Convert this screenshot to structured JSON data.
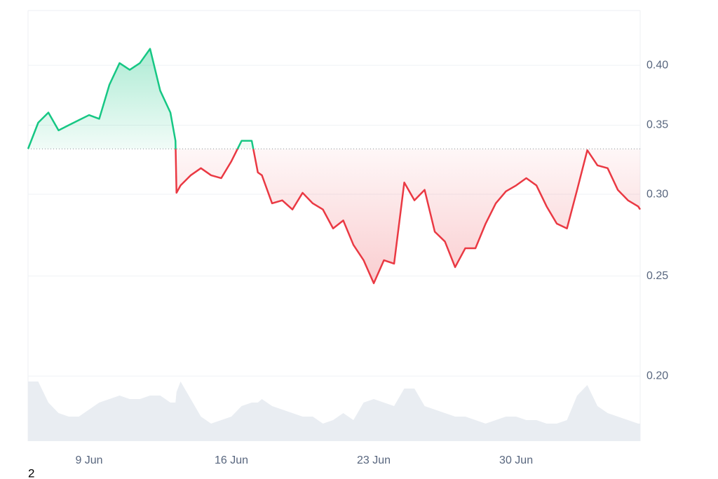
{
  "chart_data": {
    "type": "line",
    "x": [
      6.0,
      6.5,
      7.0,
      7.5,
      8.0,
      8.5,
      9.0,
      9.5,
      10.0,
      10.5,
      11.0,
      11.5,
      12.0,
      12.5,
      13.0,
      13.25,
      13.3,
      13.5,
      14.0,
      14.5,
      15.0,
      15.5,
      16.0,
      16.5,
      17.0,
      17.3,
      17.5,
      18.0,
      18.5,
      19.0,
      19.5,
      20.0,
      20.5,
      21.0,
      21.5,
      22.0,
      22.5,
      23.0,
      23.5,
      24.0,
      24.5,
      25.0,
      25.5,
      26.0,
      26.5,
      27.0,
      27.5,
      28.0,
      28.5,
      29.0,
      29.5,
      30.0,
      30.5,
      31.0,
      31.5,
      32.0,
      32.5,
      33.0,
      33.5,
      34.0,
      34.5,
      35.0,
      35.5,
      36.0,
      36.1
    ],
    "values": [
      0.332,
      0.352,
      0.36,
      0.346,
      0.35,
      0.354,
      0.358,
      0.355,
      0.383,
      0.402,
      0.396,
      0.402,
      0.415,
      0.378,
      0.36,
      0.338,
      0.301,
      0.306,
      0.313,
      0.318,
      0.313,
      0.311,
      0.323,
      0.338,
      0.338,
      0.315,
      0.313,
      0.294,
      0.296,
      0.29,
      0.301,
      0.294,
      0.29,
      0.278,
      0.283,
      0.268,
      0.259,
      0.246,
      0.259,
      0.257,
      0.308,
      0.296,
      0.303,
      0.276,
      0.27,
      0.255,
      0.266,
      0.266,
      0.281,
      0.294,
      0.302,
      0.306,
      0.311,
      0.306,
      0.292,
      0.281,
      0.278,
      0.303,
      0.331,
      0.32,
      0.318,
      0.303,
      0.296,
      0.292,
      0.29
    ],
    "baseline": 0.332,
    "up_color": "#16c784",
    "down_color": "#ea3943",
    "ylog": true,
    "ylim": [
      0.173,
      0.452
    ],
    "yticks": [
      {
        "value": 0.2,
        "label": "0.20"
      },
      0.25,
      {
        "value": 0.3,
        "label": "0.30"
      },
      0.35,
      {
        "value": 0.4,
        "label": "0.40"
      }
    ],
    "xlim": [
      6.0,
      36.1
    ],
    "xticks": [
      {
        "value": 9,
        "label": "9 Jun"
      },
      {
        "value": 16,
        "label": "16 Jun"
      },
      {
        "value": 23,
        "label": "23 Jun"
      },
      {
        "value": 30,
        "label": "30 Jun"
      }
    ],
    "grid": true,
    "volume": {
      "color": "#e9edf2",
      "lim": [
        0,
        90
      ],
      "values": [
        85,
        85,
        55,
        40,
        35,
        35,
        45,
        55,
        60,
        65,
        60,
        60,
        65,
        65,
        55,
        55,
        70,
        85,
        60,
        35,
        25,
        30,
        35,
        50,
        55,
        55,
        60,
        50,
        45,
        40,
        35,
        35,
        25,
        30,
        40,
        30,
        55,
        60,
        55,
        50,
        75,
        75,
        50,
        45,
        40,
        35,
        35,
        30,
        25,
        30,
        35,
        35,
        30,
        30,
        25,
        25,
        30,
        65,
        80,
        50,
        40,
        35,
        30,
        25,
        25
      ]
    },
    "footnote": "2"
  }
}
